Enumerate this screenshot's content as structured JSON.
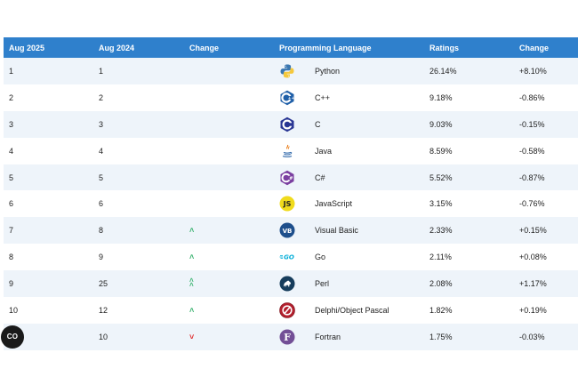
{
  "table": {
    "headers": [
      "Aug 2025",
      "Aug 2024",
      "Change",
      "Programming Language",
      "Ratings",
      "Change"
    ],
    "rows": [
      {
        "aug2025": "1",
        "aug2024": "1",
        "trend": "none",
        "logo_icon": "python-logo-icon",
        "language": "Python",
        "rating": "26.14%",
        "change": "+8.10%"
      },
      {
        "aug2025": "2",
        "aug2024": "2",
        "trend": "none",
        "logo_icon": "cpp-logo-icon",
        "language": "C++",
        "rating": "9.18%",
        "change": "-0.86%"
      },
      {
        "aug2025": "3",
        "aug2024": "3",
        "trend": "none",
        "logo_icon": "c-logo-icon",
        "language": "C",
        "rating": "9.03%",
        "change": "-0.15%"
      },
      {
        "aug2025": "4",
        "aug2024": "4",
        "trend": "none",
        "logo_icon": "java-logo-icon",
        "language": "Java",
        "rating": "8.59%",
        "change": "-0.58%"
      },
      {
        "aug2025": "5",
        "aug2024": "5",
        "trend": "none",
        "logo_icon": "csharp-logo-icon",
        "language": "C#",
        "rating": "5.52%",
        "change": "-0.87%"
      },
      {
        "aug2025": "6",
        "aug2024": "6",
        "trend": "none",
        "logo_icon": "javascript-logo-icon",
        "language": "JavaScript",
        "rating": "3.15%",
        "change": "-0.76%"
      },
      {
        "aug2025": "7",
        "aug2024": "8",
        "trend": "up",
        "logo_icon": "visual-basic-logo-icon",
        "language": "Visual Basic",
        "rating": "2.33%",
        "change": "+0.15%"
      },
      {
        "aug2025": "8",
        "aug2024": "9",
        "trend": "up",
        "logo_icon": "go-logo-icon",
        "language": "Go",
        "rating": "2.11%",
        "change": "+0.08%"
      },
      {
        "aug2025": "9",
        "aug2024": "25",
        "trend": "double-up",
        "logo_icon": "perl-logo-icon",
        "language": "Perl",
        "rating": "2.08%",
        "change": "+1.17%"
      },
      {
        "aug2025": "10",
        "aug2024": "12",
        "trend": "up",
        "logo_icon": "delphi-logo-icon",
        "language": "Delphi/Object Pascal",
        "rating": "1.82%",
        "change": "+0.19%"
      },
      {
        "aug2025": "",
        "aug2024": "10",
        "trend": "down",
        "logo_icon": "fortran-logo-icon",
        "language": "Fortran",
        "rating": "1.75%",
        "change": "-0.03%"
      }
    ]
  },
  "cc_button": {
    "label": "CO"
  },
  "colors": {
    "header_bg": "#2f80cc",
    "row_alt_bg": "#eef4fa",
    "trend_up": "#3cb371",
    "trend_down": "#e03030"
  }
}
